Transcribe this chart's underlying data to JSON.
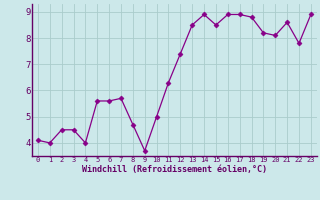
{
  "x": [
    0,
    1,
    2,
    3,
    4,
    5,
    6,
    7,
    8,
    9,
    10,
    11,
    12,
    13,
    14,
    15,
    16,
    17,
    18,
    19,
    20,
    21,
    22,
    23
  ],
  "y": [
    4.1,
    4.0,
    4.5,
    4.5,
    4.0,
    5.6,
    5.6,
    5.7,
    4.7,
    3.7,
    5.0,
    6.3,
    7.4,
    8.5,
    8.9,
    8.5,
    8.9,
    8.9,
    8.8,
    8.2,
    8.1,
    8.6,
    7.8,
    8.9
  ],
  "line_color": "#880088",
  "marker": "D",
  "marker_size": 2.5,
  "bg_color": "#cce8ea",
  "grid_color": "#aacccc",
  "xlabel": "Windchill (Refroidissement éolien,°C)",
  "xlabel_color": "#660066",
  "tick_color": "#660066",
  "axis_color": "#660066",
  "ylim": [
    3.5,
    9.3
  ],
  "yticks": [
    4,
    5,
    6,
    7,
    8,
    9
  ],
  "xlim": [
    -0.5,
    23.5
  ],
  "xtick_fontsize": 5.0,
  "ytick_fontsize": 6.5,
  "xlabel_fontsize": 6.0
}
